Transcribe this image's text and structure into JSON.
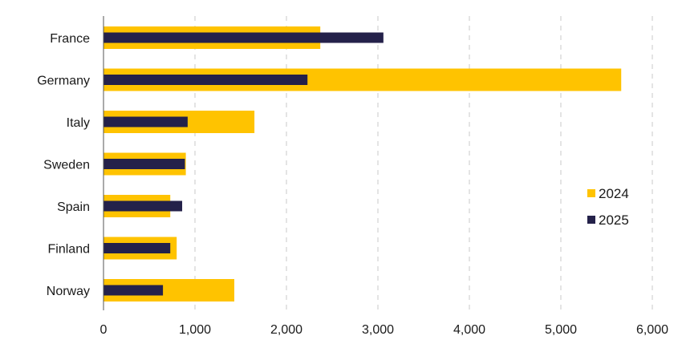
{
  "chart_data": {
    "type": "bar",
    "orientation": "horizontal",
    "categories": [
      "France",
      "Germany",
      "Italy",
      "Sweden",
      "Spain",
      "Finland",
      "Norway"
    ],
    "series": [
      {
        "name": "2024",
        "color": "#FFC300",
        "values": [
          2370,
          5660,
          1650,
          900,
          730,
          800,
          1430
        ]
      },
      {
        "name": "2025",
        "color": "#24214A",
        "values": [
          3060,
          2230,
          920,
          890,
          860,
          730,
          650
        ]
      }
    ],
    "xlim": [
      0,
      6000
    ],
    "x_ticks": [
      0,
      1000,
      2000,
      3000,
      4000,
      5000,
      6000
    ],
    "x_tick_labels": [
      "0",
      "1,000",
      "2,000",
      "3,000",
      "4,000",
      "5,000",
      "6,000"
    ],
    "grid": "vertical dashed",
    "legend_position": "right"
  }
}
